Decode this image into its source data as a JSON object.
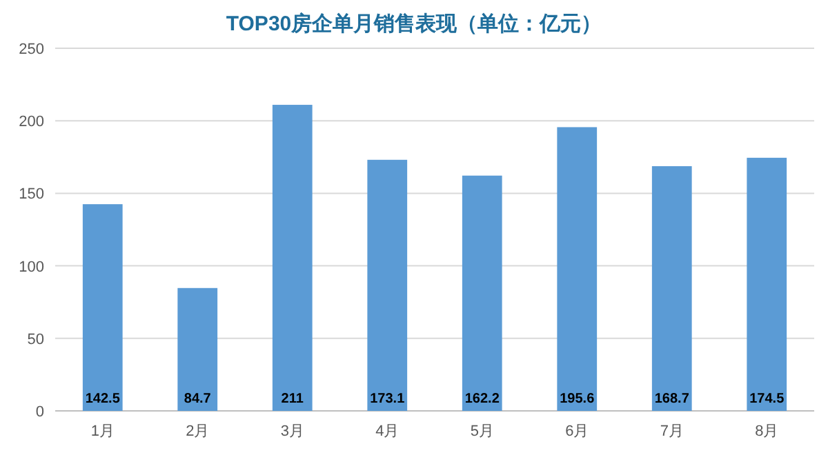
{
  "chart_data": {
    "type": "bar",
    "title": "TOP30房企单月销售表现（单位：亿元）",
    "categories": [
      "1月",
      "2月",
      "3月",
      "4月",
      "5月",
      "6月",
      "7月",
      "8月"
    ],
    "values": [
      142.5,
      84.7,
      211,
      173.1,
      162.2,
      195.6,
      168.7,
      174.5
    ],
    "color": "#5b9bd5",
    "ylim": [
      0,
      250
    ],
    "yticks": [
      0,
      50,
      100,
      150,
      200,
      250
    ],
    "grid": "y",
    "data_labels": true
  }
}
